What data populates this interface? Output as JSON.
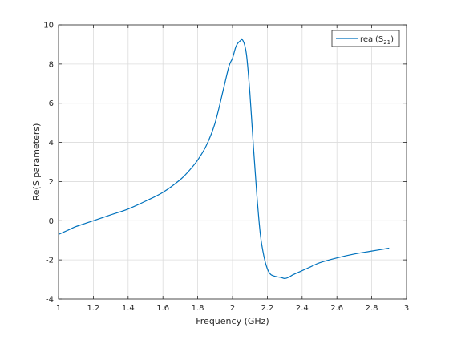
{
  "chart_data": {
    "type": "line",
    "xlabel": "Frequency (GHz)",
    "ylabel": "Re(S parameters)",
    "xlim": [
      1,
      3
    ],
    "ylim": [
      -4,
      10
    ],
    "xticks": [
      1,
      1.2,
      1.4,
      1.6,
      1.8,
      2,
      2.2,
      2.4,
      2.6,
      2.8,
      3
    ],
    "xtick_labels": [
      "1",
      "1.2",
      "1.4",
      "1.6",
      "1.8",
      "2",
      "2.2",
      "2.4",
      "2.6",
      "2.8",
      "3"
    ],
    "yticks": [
      -4,
      -2,
      0,
      2,
      4,
      6,
      8,
      10
    ],
    "ytick_labels": [
      "-4",
      "-2",
      "0",
      "2",
      "4",
      "6",
      "8",
      "10"
    ],
    "grid": true,
    "legend_position": "top-right",
    "series": [
      {
        "name": "real(S21)",
        "legend_main": "real(S",
        "legend_sub": "21",
        "legend_close": ")",
        "color": "#0072BD",
        "x": [
          1.0,
          1.05,
          1.1,
          1.15,
          1.2,
          1.3,
          1.4,
          1.5,
          1.6,
          1.7,
          1.75,
          1.8,
          1.85,
          1.9,
          1.95,
          1.98,
          2.0,
          2.02,
          2.04,
          2.06,
          2.08,
          2.1,
          2.12,
          2.14,
          2.16,
          2.18,
          2.2,
          2.22,
          2.25,
          2.28,
          2.3,
          2.32,
          2.35,
          2.4,
          2.45,
          2.5,
          2.6,
          2.7,
          2.8,
          2.9
        ],
        "y": [
          -0.7,
          -0.5,
          -0.3,
          -0.15,
          0.0,
          0.3,
          0.6,
          1.0,
          1.45,
          2.1,
          2.55,
          3.1,
          3.85,
          5.0,
          6.8,
          7.9,
          8.3,
          8.9,
          9.15,
          9.2,
          8.5,
          6.5,
          3.8,
          1.3,
          -0.7,
          -1.8,
          -2.45,
          -2.75,
          -2.85,
          -2.9,
          -2.95,
          -2.9,
          -2.75,
          -2.55,
          -2.35,
          -2.15,
          -1.9,
          -1.7,
          -1.55,
          -1.4
        ]
      }
    ]
  }
}
